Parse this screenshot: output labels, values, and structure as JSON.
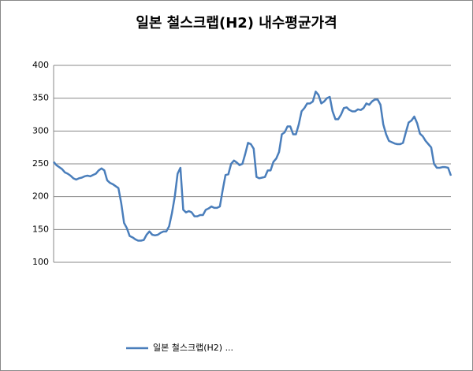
{
  "chart_data": {
    "type": "line",
    "title": "일본 철스크랩(H2) 내수평균가격",
    "series": [
      {
        "name": "일본 철스크랩(H2) ...",
        "color": "#4a7ebb",
        "values": [
          253,
          248,
          245,
          242,
          237,
          235,
          232,
          228,
          226,
          228,
          229,
          231,
          232,
          231,
          233,
          235,
          240,
          243,
          240,
          225,
          221,
          219,
          216,
          213,
          190,
          160,
          152,
          140,
          138,
          135,
          133,
          133,
          134,
          142,
          147,
          142,
          141,
          142,
          145,
          147,
          147,
          155,
          175,
          200,
          235,
          244,
          180,
          176,
          178,
          176,
          170,
          170,
          172,
          172,
          180,
          182,
          185,
          183,
          183,
          185,
          210,
          233,
          234,
          250,
          255,
          252,
          248,
          250,
          265,
          282,
          280,
          273,
          230,
          228,
          229,
          230,
          240,
          240,
          253,
          258,
          268,
          295,
          298,
          307,
          307,
          295,
          295,
          310,
          330,
          335,
          342,
          342,
          345,
          360,
          355,
          342,
          345,
          350,
          352,
          330,
          318,
          318,
          325,
          335,
          336,
          332,
          330,
          330,
          333,
          332,
          335,
          342,
          340,
          345,
          348,
          348,
          340,
          310,
          295,
          285,
          283,
          281,
          280,
          280,
          282,
          298,
          313,
          316,
          322,
          312,
          296,
          292,
          285,
          280,
          275,
          250,
          244,
          244,
          245,
          245,
          244,
          232
        ]
      }
    ],
    "ylim": [
      100,
      400
    ],
    "yticks": [
      100,
      150,
      200,
      250,
      300,
      350,
      400
    ],
    "grid": true
  }
}
